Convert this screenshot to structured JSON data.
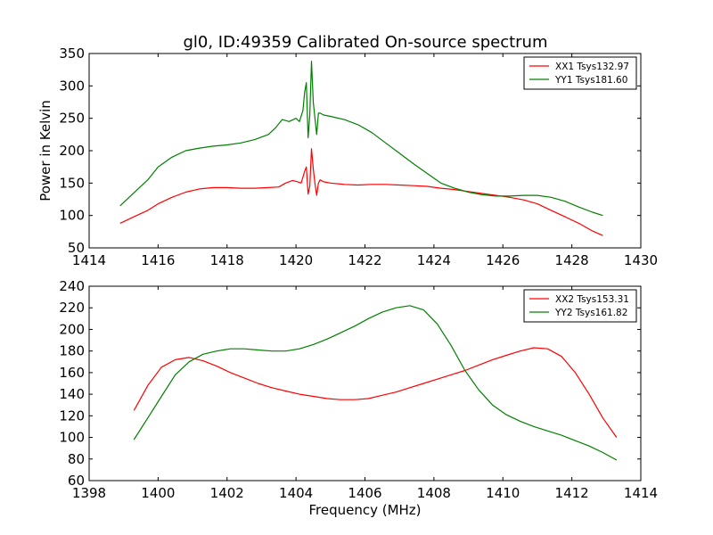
{
  "figure": {
    "title": "gl0, ID:49359 Calibrated On-source spectrum"
  },
  "colors": {
    "xx": "#ff0000",
    "yy": "#008000"
  },
  "chart_data": [
    {
      "type": "line",
      "title": "gl0, ID:49359 Calibrated On-source spectrum",
      "xlabel": "",
      "ylabel": "Power in Kelvin",
      "xlim": [
        1414,
        1430
      ],
      "ylim": [
        50,
        350
      ],
      "xticks": [
        1414,
        1416,
        1418,
        1420,
        1422,
        1424,
        1426,
        1428,
        1430
      ],
      "yticks": [
        50,
        100,
        150,
        200,
        250,
        300,
        350
      ],
      "legend": "top-right",
      "grid": false,
      "series": [
        {
          "name": "XX1 Tsys132.97",
          "color": "#ff0000",
          "x": [
            1414.9,
            1415.3,
            1415.7,
            1416.0,
            1416.4,
            1416.8,
            1417.2,
            1417.6,
            1418.0,
            1418.4,
            1418.8,
            1419.2,
            1419.5,
            1419.7,
            1419.9,
            1420.05,
            1420.15,
            1420.25,
            1420.3,
            1420.35,
            1420.4,
            1420.45,
            1420.5,
            1420.55,
            1420.6,
            1420.65,
            1420.7,
            1420.8,
            1421.0,
            1421.4,
            1421.8,
            1422.2,
            1422.6,
            1423.0,
            1423.4,
            1423.8,
            1424.2,
            1424.6,
            1425.0,
            1425.4,
            1425.8,
            1426.2,
            1426.6,
            1427.0,
            1427.4,
            1427.8,
            1428.2,
            1428.6,
            1428.9
          ],
          "y": [
            88,
            98,
            108,
            118,
            128,
            136,
            141,
            143,
            143,
            142,
            142,
            143,
            144,
            150,
            154,
            152,
            150,
            168,
            175,
            133,
            145,
            203,
            172,
            149,
            131,
            150,
            155,
            152,
            150,
            148,
            147,
            148,
            148,
            147,
            146,
            145,
            142,
            140,
            137,
            134,
            131,
            128,
            124,
            118,
            108,
            98,
            88,
            76,
            69
          ]
        },
        {
          "name": "YY1 Tsys181.60",
          "color": "#008000",
          "x": [
            1414.9,
            1415.3,
            1415.7,
            1416.0,
            1416.4,
            1416.8,
            1417.2,
            1417.6,
            1418.0,
            1418.4,
            1418.8,
            1419.2,
            1419.4,
            1419.6,
            1419.8,
            1420.0,
            1420.1,
            1420.2,
            1420.25,
            1420.3,
            1420.35,
            1420.4,
            1420.45,
            1420.5,
            1420.55,
            1420.6,
            1420.65,
            1420.7,
            1420.8,
            1421.0,
            1421.4,
            1421.8,
            1422.2,
            1422.6,
            1423.0,
            1423.4,
            1423.8,
            1424.2,
            1424.6,
            1425.0,
            1425.4,
            1425.8,
            1426.2,
            1426.6,
            1427.0,
            1427.4,
            1427.8,
            1428.2,
            1428.6,
            1428.9
          ],
          "y": [
            115,
            135,
            155,
            175,
            190,
            200,
            204,
            207,
            209,
            212,
            217,
            225,
            235,
            248,
            245,
            250,
            245,
            262,
            290,
            305,
            220,
            255,
            338,
            275,
            250,
            225,
            258,
            258,
            255,
            253,
            248,
            240,
            228,
            212,
            196,
            180,
            165,
            150,
            142,
            136,
            132,
            130,
            130,
            131,
            131,
            128,
            122,
            113,
            105,
            100
          ]
        }
      ]
    },
    {
      "type": "line",
      "title": "",
      "xlabel": "Frequency (MHz)",
      "ylabel": "",
      "xlim": [
        1398,
        1414
      ],
      "ylim": [
        60,
        240
      ],
      "xticks": [
        1398,
        1400,
        1402,
        1404,
        1406,
        1408,
        1410,
        1412,
        1414
      ],
      "yticks": [
        60,
        80,
        100,
        120,
        140,
        160,
        180,
        200,
        220,
        240
      ],
      "legend": "top-right",
      "grid": false,
      "series": [
        {
          "name": "XX2 Tsys153.31",
          "color": "#ff0000",
          "x": [
            1399.3,
            1399.7,
            1400.1,
            1400.5,
            1400.9,
            1401.3,
            1401.7,
            1402.1,
            1402.5,
            1402.9,
            1403.3,
            1403.7,
            1404.1,
            1404.5,
            1404.9,
            1405.3,
            1405.7,
            1406.1,
            1406.5,
            1406.9,
            1407.3,
            1407.7,
            1408.1,
            1408.5,
            1408.9,
            1409.3,
            1409.7,
            1410.1,
            1410.5,
            1410.9,
            1411.3,
            1411.7,
            1412.1,
            1412.5,
            1412.9,
            1413.3
          ],
          "y": [
            125,
            148,
            165,
            172,
            174,
            171,
            166,
            160,
            155,
            150,
            146,
            143,
            140,
            138,
            136,
            135,
            135,
            136,
            139,
            142,
            146,
            150,
            154,
            158,
            162,
            167,
            172,
            176,
            180,
            183,
            182,
            175,
            160,
            140,
            118,
            100
          ]
        },
        {
          "name": "YY2 Tsys161.82",
          "color": "#008000",
          "x": [
            1399.3,
            1399.7,
            1400.1,
            1400.5,
            1400.9,
            1401.3,
            1401.7,
            1402.1,
            1402.5,
            1402.9,
            1403.3,
            1403.7,
            1404.1,
            1404.5,
            1404.9,
            1405.3,
            1405.7,
            1406.1,
            1406.5,
            1406.9,
            1407.3,
            1407.7,
            1408.1,
            1408.5,
            1408.9,
            1409.3,
            1409.7,
            1410.1,
            1410.5,
            1410.9,
            1411.3,
            1411.7,
            1412.1,
            1412.5,
            1412.9,
            1413.3
          ],
          "y": [
            98,
            118,
            138,
            158,
            170,
            177,
            180,
            182,
            182,
            181,
            180,
            180,
            182,
            186,
            191,
            197,
            203,
            210,
            216,
            220,
            222,
            218,
            205,
            185,
            162,
            144,
            130,
            121,
            115,
            110,
            106,
            102,
            97,
            92,
            86,
            79
          ]
        }
      ]
    }
  ]
}
